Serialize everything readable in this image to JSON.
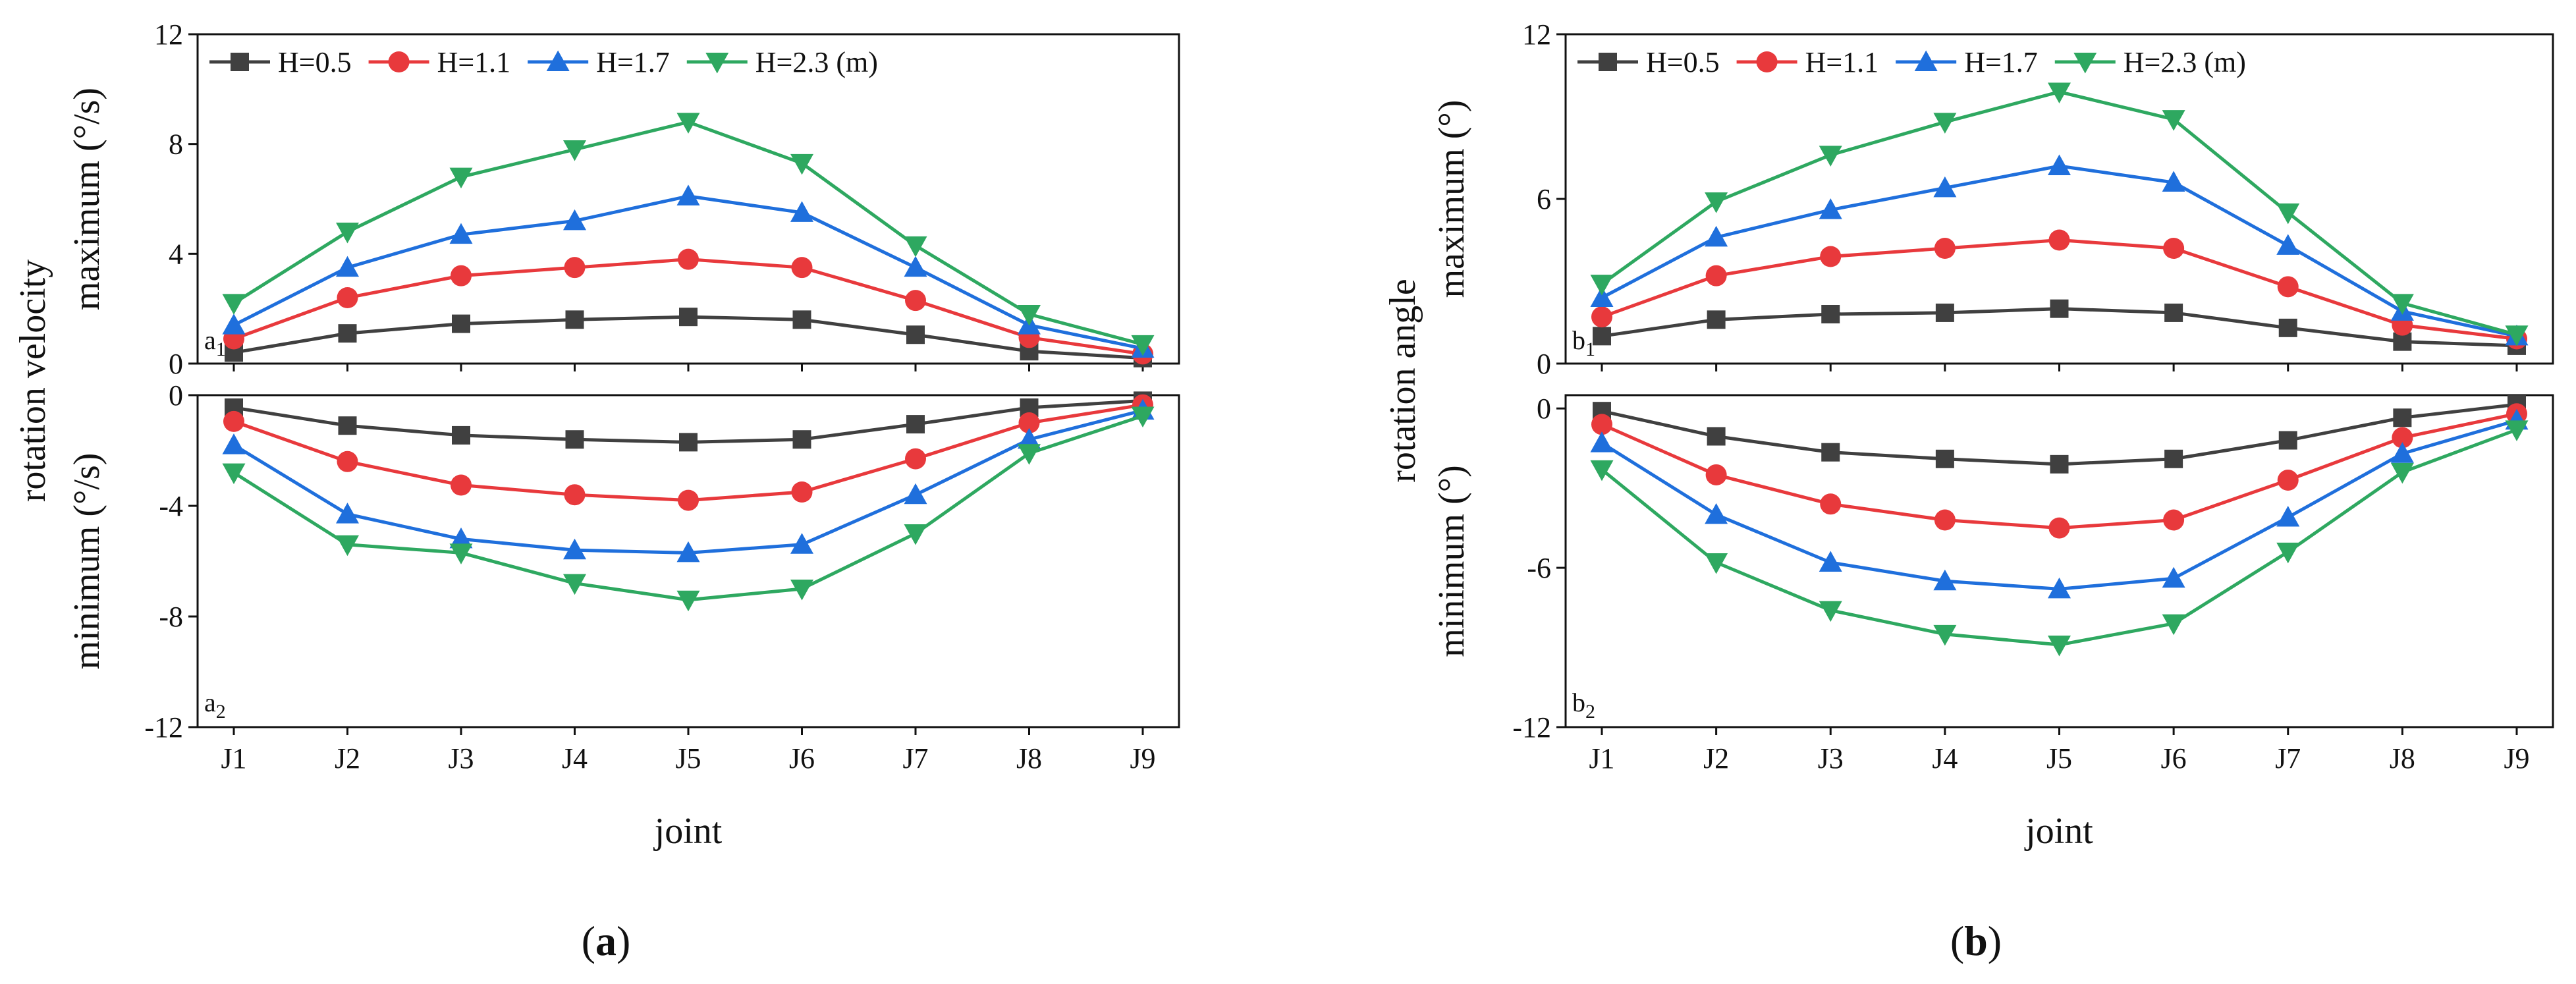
{
  "figure": {
    "captions": [
      "(a)",
      "(b)"
    ]
  },
  "colors": {
    "H=0.5": "#404040",
    "H=1.1": "#e8393c",
    "H=1.7": "#1f6fdc",
    "H=2.3": "#2ea860"
  },
  "chart_data": [
    {
      "id": "a",
      "type": "line",
      "caption": "(a)",
      "categories": [
        "J1",
        "J2",
        "J3",
        "J4",
        "J5",
        "J6",
        "J7",
        "J8",
        "J9"
      ],
      "xlabel": "joint",
      "shared_ylabel": "rotation velocity",
      "legend": {
        "placement": "top-left",
        "entries": [
          "H=0.5",
          "H=1.1",
          "H=1.7",
          "H=2.3 (m)"
        ]
      },
      "grid": false,
      "panels": [
        {
          "tag": "a1",
          "tag_letter": "a",
          "tag_sub": "1",
          "ylabel": "maximum (°/s)",
          "ylim": [
            0,
            12
          ],
          "yticks": [
            "0",
            "4",
            "8",
            "12"
          ],
          "series": [
            {
              "name": "H=0.5",
              "marker": "square",
              "values": [
                0.4,
                1.1,
                1.45,
                1.6,
                1.7,
                1.6,
                1.05,
                0.45,
                0.2
              ]
            },
            {
              "name": "H=1.1",
              "marker": "circle",
              "values": [
                0.9,
                2.4,
                3.2,
                3.5,
                3.8,
                3.5,
                2.3,
                0.95,
                0.35
              ]
            },
            {
              "name": "H=1.7",
              "marker": "triangle-up",
              "values": [
                1.4,
                3.5,
                4.7,
                5.2,
                6.1,
                5.5,
                3.5,
                1.4,
                0.55
              ]
            },
            {
              "name": "H=2.3 (m)",
              "marker": "triangle-down",
              "values": [
                2.2,
                4.8,
                6.8,
                7.8,
                8.8,
                7.3,
                4.3,
                1.8,
                0.7
              ]
            }
          ]
        },
        {
          "tag": "a2",
          "tag_letter": "a",
          "tag_sub": "2",
          "ylabel": "minimum (°/s)",
          "ylim": [
            -12,
            0
          ],
          "yticks": [
            "-12",
            "-8",
            "-4",
            "0"
          ],
          "series": [
            {
              "name": "H=0.5",
              "marker": "square",
              "values": [
                -0.45,
                -1.1,
                -1.45,
                -1.6,
                -1.7,
                -1.6,
                -1.05,
                -0.45,
                -0.2
              ]
            },
            {
              "name": "H=1.1",
              "marker": "circle",
              "values": [
                -0.95,
                -2.4,
                -3.25,
                -3.6,
                -3.8,
                -3.5,
                -2.3,
                -1.0,
                -0.35
              ]
            },
            {
              "name": "H=1.7",
              "marker": "triangle-up",
              "values": [
                -1.8,
                -4.3,
                -5.2,
                -5.6,
                -5.7,
                -5.4,
                -3.6,
                -1.6,
                -0.55
              ]
            },
            {
              "name": "H=2.3 (m)",
              "marker": "triangle-down",
              "values": [
                -2.8,
                -5.4,
                -5.7,
                -6.8,
                -7.4,
                -7.0,
                -5.0,
                -2.1,
                -0.75
              ]
            }
          ]
        }
      ]
    },
    {
      "id": "b",
      "type": "line",
      "caption": "(b)",
      "categories": [
        "J1",
        "J2",
        "J3",
        "J4",
        "J5",
        "J6",
        "J7",
        "J8",
        "J9"
      ],
      "xlabel": "joint",
      "shared_ylabel": "rotation angle",
      "legend": {
        "placement": "top-left",
        "entries": [
          "H=0.5",
          "H=1.1",
          "H=1.7",
          "H=2.3 (m)"
        ]
      },
      "grid": false,
      "panels": [
        {
          "tag": "b1",
          "tag_letter": "b",
          "tag_sub": "1",
          "ylabel": "maximum (°)",
          "ylim": [
            0,
            12
          ],
          "yticks": [
            "0",
            "6",
            "12"
          ],
          "series": [
            {
              "name": "H=0.5",
              "marker": "square",
              "values": [
                1.0,
                1.6,
                1.8,
                1.85,
                2.0,
                1.85,
                1.3,
                0.8,
                0.65
              ]
            },
            {
              "name": "H=1.1",
              "marker": "circle",
              "values": [
                1.7,
                3.2,
                3.9,
                4.2,
                4.5,
                4.2,
                2.8,
                1.4,
                0.9
              ]
            },
            {
              "name": "H=1.7",
              "marker": "triangle-up",
              "values": [
                2.4,
                4.6,
                5.6,
                6.4,
                7.2,
                6.6,
                4.3,
                1.9,
                1.0
              ]
            },
            {
              "name": "H=2.3 (m)",
              "marker": "triangle-down",
              "values": [
                2.9,
                5.9,
                7.6,
                8.8,
                9.9,
                8.9,
                5.5,
                2.2,
                1.05
              ]
            }
          ]
        },
        {
          "tag": "b2",
          "tag_letter": "b",
          "tag_sub": "2",
          "ylabel": "minimum (°)",
          "ylim": [
            -12,
            0.5
          ],
          "yticks": [
            "-12",
            "-6",
            "0"
          ],
          "series": [
            {
              "name": "H=0.5",
              "marker": "square",
              "values": [
                -0.1,
                -1.05,
                -1.65,
                -1.9,
                -2.1,
                -1.9,
                -1.2,
                -0.35,
                0.15
              ]
            },
            {
              "name": "H=1.1",
              "marker": "circle",
              "values": [
                -0.6,
                -2.5,
                -3.6,
                -4.2,
                -4.5,
                -4.2,
                -2.7,
                -1.1,
                -0.2
              ]
            },
            {
              "name": "H=1.7",
              "marker": "triangle-up",
              "values": [
                -1.3,
                -4.0,
                -5.8,
                -6.5,
                -6.8,
                -6.4,
                -4.1,
                -1.7,
                -0.45
              ]
            },
            {
              "name": "H=2.3 (m)",
              "marker": "triangle-down",
              "values": [
                -2.3,
                -5.8,
                -7.6,
                -8.5,
                -8.9,
                -8.1,
                -5.4,
                -2.4,
                -0.8
              ]
            }
          ]
        }
      ]
    }
  ]
}
